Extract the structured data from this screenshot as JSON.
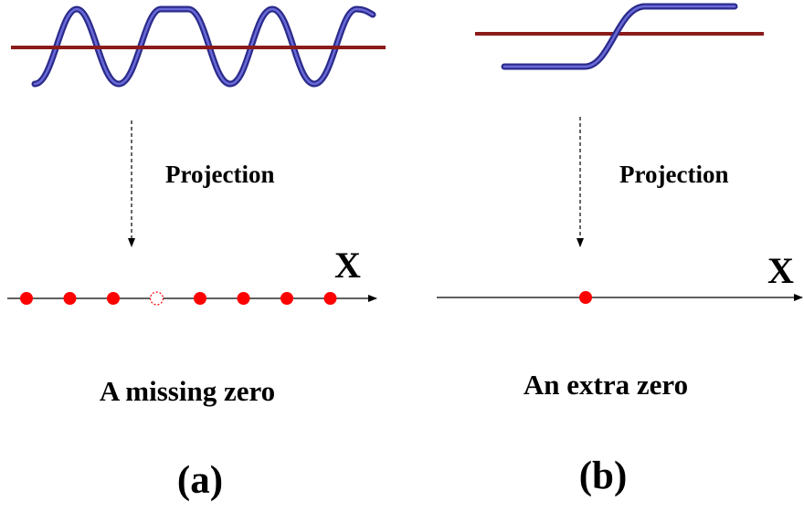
{
  "panels": [
    {
      "id": "a",
      "projection_label": "Projection",
      "axis_label": "X",
      "caption": "A missing zero",
      "panel_label": "(a)",
      "zeros_total": 8,
      "missing_zero_index": 3
    },
    {
      "id": "b",
      "projection_label": "Projection",
      "axis_label": "X",
      "caption": "An extra zero",
      "panel_label": "(b)",
      "zeros_total": 1
    }
  ],
  "colors": {
    "helix": "#2b2b8c",
    "helix_highlight": "#6a6ad8",
    "reference_line": "#8b1a1a",
    "zero_marker": "#ff0000",
    "axis": "#000000"
  }
}
